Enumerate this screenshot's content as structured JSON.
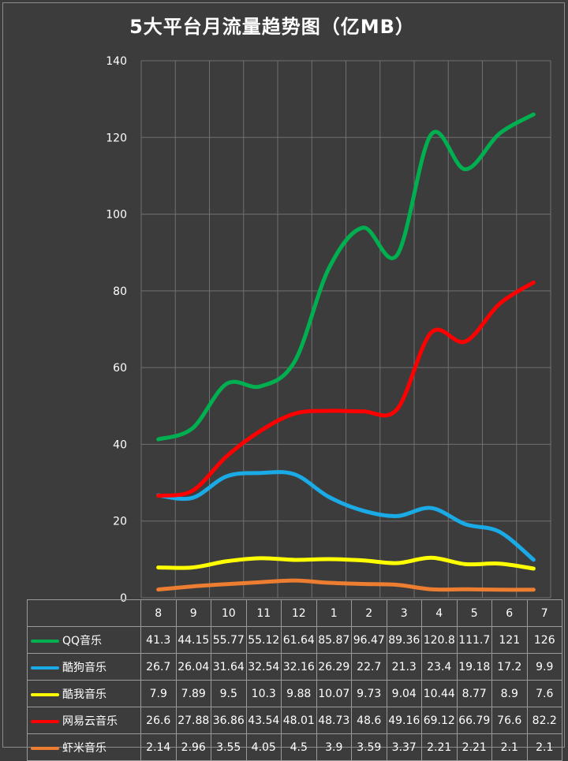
{
  "chart_data": {
    "type": "line",
    "title": "5大平台月流量趋势图（亿MB）",
    "categories": [
      "8",
      "9",
      "10",
      "11",
      "12",
      "1",
      "2",
      "3",
      "4",
      "5",
      "6",
      "7"
    ],
    "ylim": [
      0,
      140
    ],
    "yticks": [
      0,
      20,
      40,
      60,
      80,
      100,
      120,
      140
    ],
    "grid": true,
    "legend": "data-table",
    "series": [
      {
        "name": "QQ音乐",
        "color": "#00b050",
        "values": [
          41.3,
          44.15,
          55.77,
          55.12,
          61.64,
          85.87,
          96.47,
          89.36,
          120.8,
          111.7,
          121,
          126
        ],
        "labels": [
          "41.3",
          "44.15",
          "55.77",
          "55.12",
          "61.64",
          "85.87",
          "96.47",
          "89.36",
          "120.8",
          "111.7",
          "121",
          "126"
        ]
      },
      {
        "name": "酷狗音乐",
        "color": "#1aaae6",
        "values": [
          26.7,
          26.04,
          31.64,
          32.54,
          32.16,
          26.29,
          22.7,
          21.3,
          23.4,
          19.18,
          17.2,
          9.9
        ],
        "labels": [
          "26.7",
          "26.04",
          "31.64",
          "32.54",
          "32.16",
          "26.29",
          "22.7",
          "21.3",
          "23.4",
          "19.18",
          "17.2",
          "9.9"
        ]
      },
      {
        "name": "酷我音乐",
        "color": "#ffff00",
        "values": [
          7.9,
          7.89,
          9.5,
          10.3,
          9.88,
          10.07,
          9.73,
          9.04,
          10.44,
          8.77,
          8.9,
          7.6
        ],
        "labels": [
          "7.9",
          "7.89",
          "9.5",
          "10.3",
          "9.88",
          "10.07",
          "9.73",
          "9.04",
          "10.44",
          "8.77",
          "8.9",
          "7.6"
        ]
      },
      {
        "name": "网易云音乐",
        "color": "#ff0000",
        "values": [
          26.6,
          27.88,
          36.86,
          43.54,
          48.01,
          48.73,
          48.6,
          49.16,
          69.12,
          66.79,
          76.6,
          82.2
        ],
        "labels": [
          "26.6",
          "27.88",
          "36.86",
          "43.54",
          "48.01",
          "48.73",
          "48.6",
          "49.16",
          "69.12",
          "66.79",
          "76.6",
          "82.2"
        ]
      },
      {
        "name": "虾米音乐",
        "color": "#ed7d31",
        "values": [
          2.14,
          2.96,
          3.55,
          4.05,
          4.5,
          3.9,
          3.59,
          3.37,
          2.21,
          2.21,
          2.1,
          2.1
        ],
        "labels": [
          "2.14",
          "2.96",
          "3.55",
          "4.05",
          "4.5",
          "3.9",
          "3.59",
          "3.37",
          "2.21",
          "2.21",
          "2.1",
          "2.1"
        ]
      }
    ]
  }
}
